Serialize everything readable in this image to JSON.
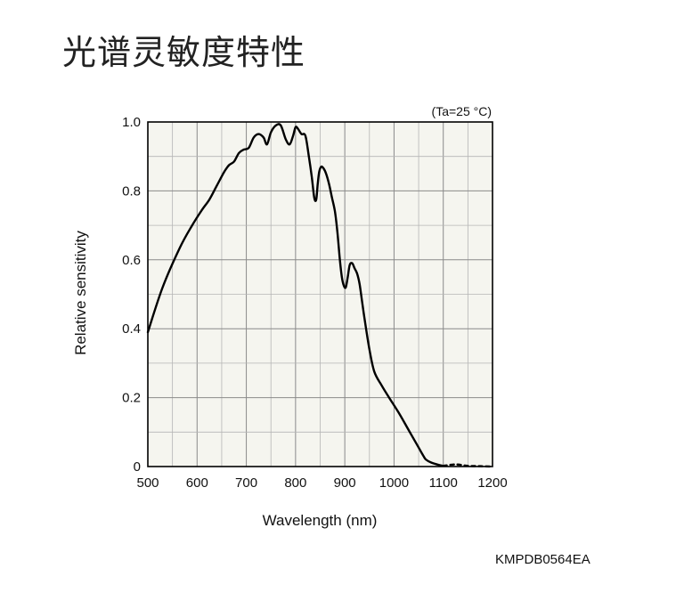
{
  "page": {
    "title": "光谱灵敏度特性",
    "document_code": "KMPDB0564EA"
  },
  "chart_data": {
    "type": "line",
    "title": "光谱灵敏度特性",
    "condition": "(Ta=25 °C)",
    "xlabel": "Wavelength (nm)",
    "ylabel": "Relative sensitivity",
    "xlim": [
      500,
      1200
    ],
    "ylim": [
      0,
      1.0
    ],
    "x_ticks": [
      500,
      600,
      700,
      800,
      900,
      1000,
      1100,
      1200
    ],
    "x_tick_labels": [
      "500",
      "600",
      "700",
      "800",
      "900",
      "1000",
      "1100",
      "1200"
    ],
    "y_ticks": [
      0,
      0.2,
      0.4,
      0.6,
      0.8,
      1.0
    ],
    "y_tick_labels": [
      "0",
      "0.2",
      "0.4",
      "0.6",
      "0.8",
      "1.0"
    ],
    "grid": true,
    "grid_x_step": 50,
    "grid_y_step": 0.1,
    "plot_background": "#f5f5ef",
    "line_color": "#000000",
    "series": [
      {
        "style": "solid",
        "x": [
          500,
          530,
          565,
          590,
          610,
          625,
          640,
          655,
          665,
          675,
          685,
          695,
          705,
          715,
          725,
          735,
          742,
          750,
          760,
          770,
          780,
          788,
          795,
          800,
          805,
          812,
          820,
          827,
          833,
          838,
          842,
          845,
          848,
          852,
          857,
          862,
          868,
          874,
          880,
          885,
          890,
          894,
          898,
          902,
          906,
          910,
          915,
          920,
          925,
          930,
          935,
          940,
          950,
          960,
          975,
          990,
          1010,
          1030,
          1050,
          1060,
          1065,
          1075,
          1090,
          1100
        ],
        "y": [
          0.39,
          0.52,
          0.635,
          0.7,
          0.745,
          0.775,
          0.815,
          0.855,
          0.875,
          0.885,
          0.91,
          0.92,
          0.925,
          0.955,
          0.965,
          0.955,
          0.935,
          0.97,
          0.99,
          0.99,
          0.95,
          0.935,
          0.96,
          0.985,
          0.98,
          0.965,
          0.96,
          0.9,
          0.84,
          0.78,
          0.775,
          0.82,
          0.855,
          0.87,
          0.865,
          0.85,
          0.82,
          0.78,
          0.74,
          0.68,
          0.6,
          0.55,
          0.525,
          0.52,
          0.55,
          0.585,
          0.59,
          0.575,
          0.56,
          0.53,
          0.48,
          0.43,
          0.34,
          0.275,
          0.235,
          0.2,
          0.155,
          0.105,
          0.055,
          0.03,
          0.02,
          0.012,
          0.005,
          0.002
        ]
      },
      {
        "style": "dashed",
        "x": [
          1100,
          1125,
          1150,
          1175,
          1200
        ],
        "y": [
          0.002,
          0.006,
          0.002,
          0.001,
          0.0
        ]
      }
    ]
  }
}
